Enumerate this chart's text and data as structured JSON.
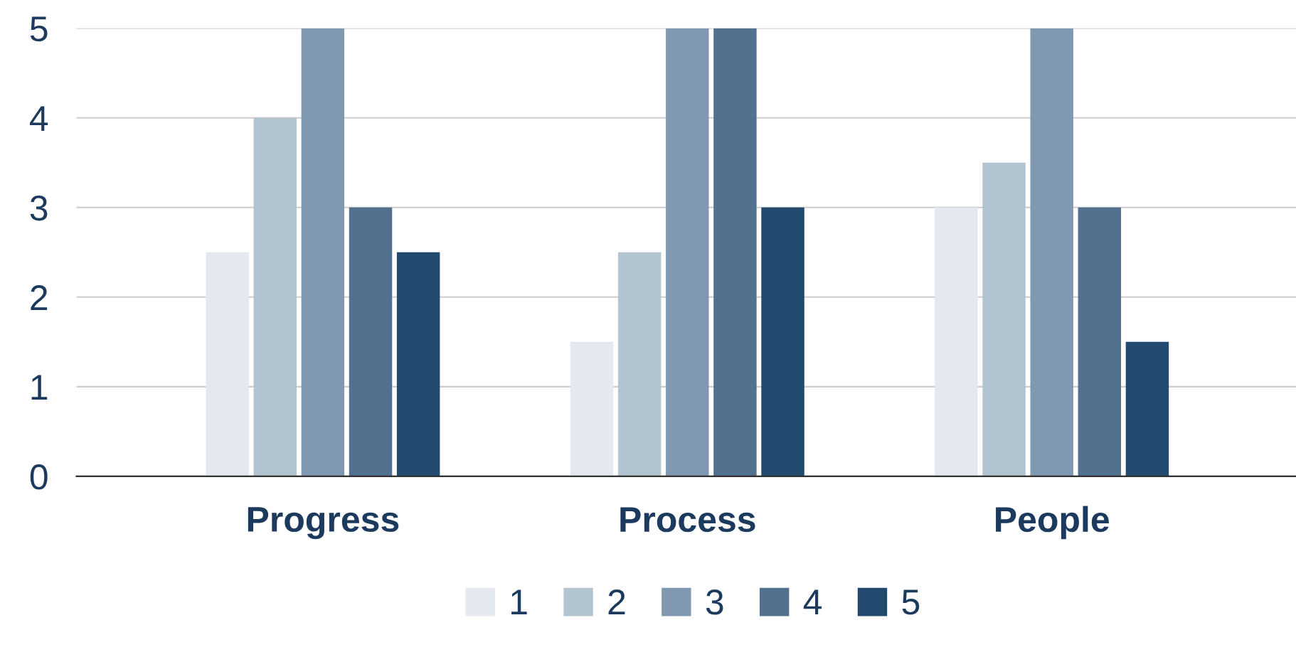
{
  "chart_data": {
    "type": "bar",
    "categories": [
      "Progress",
      "Process",
      "People"
    ],
    "series": [
      {
        "name": "1",
        "color": "#e3e9ee",
        "values": [
          2.5,
          1.5,
          3
        ]
      },
      {
        "name": "2",
        "color": "#b3c4d1",
        "values": [
          4,
          2.5,
          3.5
        ]
      },
      {
        "name": "3",
        "color": "#8099b0",
        "values": [
          5,
          5,
          5
        ]
      },
      {
        "name": "4",
        "color": "#52718f",
        "values": [
          3,
          5,
          3
        ]
      },
      {
        "name": "5",
        "color": "#22496e",
        "values": [
          2.5,
          3,
          1.5
        ]
      }
    ],
    "ylim": [
      0,
      5
    ],
    "yticks": [
      0,
      1,
      2,
      3,
      4,
      5
    ],
    "grid": "y",
    "legend": "bottom"
  }
}
